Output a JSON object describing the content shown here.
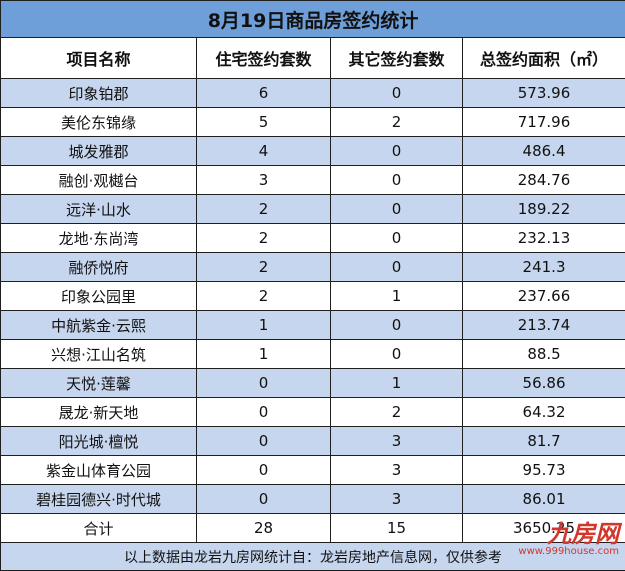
{
  "table": {
    "title": "8月19日商品房签约统计",
    "header": [
      "项目名称",
      "住宅签约套数",
      "其它签约套数",
      "总签约面积（㎡）"
    ],
    "rows": [
      [
        "印象铂郡",
        "6",
        "0",
        "573.96"
      ],
      [
        "美伦东锦缘",
        "5",
        "2",
        "717.96"
      ],
      [
        "城发雅郡",
        "4",
        "0",
        "486.4"
      ],
      [
        "融创·观樾台",
        "3",
        "0",
        "284.76"
      ],
      [
        "远洋·山水",
        "2",
        "0",
        "189.22"
      ],
      [
        "龙地·东尚湾",
        "2",
        "0",
        "232.13"
      ],
      [
        "融侨悦府",
        "2",
        "0",
        "241.3"
      ],
      [
        "印象公园里",
        "2",
        "1",
        "237.66"
      ],
      [
        "中航紫金·云熙",
        "1",
        "0",
        "213.74"
      ],
      [
        "兴想·江山名筑",
        "1",
        "0",
        "88.5"
      ],
      [
        "天悦·莲馨",
        "0",
        "1",
        "56.86"
      ],
      [
        "晟龙·新天地",
        "0",
        "2",
        "64.32"
      ],
      [
        "阳光城·檀悦",
        "0",
        "3",
        "81.7"
      ],
      [
        "紫金山体育公园",
        "0",
        "3",
        "95.73"
      ],
      [
        "碧桂园德兴·时代城",
        "0",
        "3",
        "86.01"
      ],
      [
        "合计",
        "28",
        "15",
        "3650.25"
      ]
    ],
    "footnote": "以上数据由龙岩九房网统计自：龙岩房地产信息网，仅供参考"
  },
  "watermark": {
    "logo": "九房网",
    "url": "www.999house.com"
  }
}
